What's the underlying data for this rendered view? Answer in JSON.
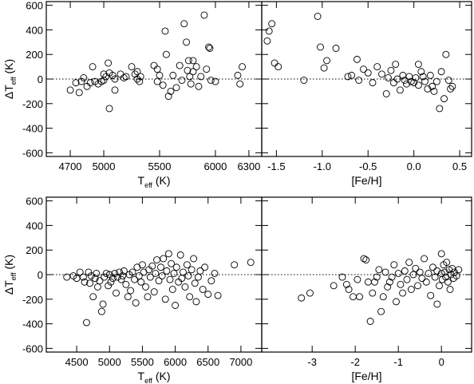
{
  "chart_data": [
    {
      "type": "scatter",
      "color": "#000000",
      "xlabel": {
        "text": "T",
        "sub": "eff",
        "unit": "(K)"
      },
      "ylabel": {
        "text": "ΔT",
        "sub": "eff",
        "unit": "(K)"
      },
      "xlim": [
        4485,
        6415
      ],
      "ylim": [
        -630,
        630
      ],
      "xticks": [
        4700,
        5000,
        5500,
        6000,
        6300
      ],
      "yticks": [
        -600,
        -400,
        -200,
        0,
        200,
        400,
        600
      ],
      "hline": 0,
      "x": [
        4700,
        4750,
        4780,
        4800,
        4820,
        4850,
        4880,
        4900,
        4920,
        4950,
        4980,
        5000,
        5000,
        5020,
        5040,
        5050,
        5050,
        5080,
        5100,
        5100,
        5150,
        5180,
        5200,
        5250,
        5280,
        5300,
        5300,
        5320,
        5330,
        5450,
        5480,
        5480,
        5500,
        5530,
        5550,
        5560,
        5580,
        5600,
        5620,
        5650,
        5680,
        5700,
        5720,
        5740,
        5750,
        5760,
        5770,
        5780,
        5800,
        5800,
        5830,
        5850,
        5870,
        5900,
        5920,
        5940,
        5950,
        5960,
        6000,
        6200,
        6220,
        6240
      ],
      "values": [
        -90,
        -30,
        -110,
        -20,
        10,
        -60,
        -30,
        100,
        -20,
        -40,
        -20,
        40,
        -10,
        20,
        130,
        -240,
        50,
        30,
        0,
        -90,
        40,
        10,
        20,
        100,
        40,
        60,
        0,
        -20,
        20,
        110,
        80,
        -20,
        30,
        -50,
        390,
        200,
        -140,
        -100,
        30,
        -70,
        110,
        -10,
        450,
        300,
        70,
        150,
        20,
        -40,
        150,
        60,
        100,
        -60,
        20,
        520,
        80,
        260,
        250,
        -10,
        -20,
        30,
        -40,
        100
      ]
    },
    {
      "type": "scatter",
      "color": "#000000",
      "xlabel": {
        "text": "[Fe/H]"
      },
      "xlim": [
        -1.66,
        0.63
      ],
      "ylim": [
        -630,
        630
      ],
      "xticks": [
        {
          "value": -1.5,
          "label": "-1.5"
        },
        {
          "value": -1.0,
          "label": "-1.0"
        },
        {
          "value": -0.5,
          "label": "-0.5"
        },
        {
          "value": 0.0,
          "label": "0.0"
        },
        {
          "value": 0.5,
          "label": "0.5"
        }
      ],
      "hline": 0,
      "x": [
        -1.6,
        -1.58,
        -1.55,
        -1.52,
        -1.48,
        -1.2,
        -1.05,
        -1.02,
        -0.98,
        -0.95,
        -0.85,
        -0.72,
        -0.68,
        -0.62,
        -0.6,
        -0.55,
        -0.5,
        -0.45,
        -0.4,
        -0.35,
        -0.3,
        -0.28,
        -0.25,
        -0.22,
        -0.2,
        -0.18,
        -0.15,
        -0.12,
        -0.1,
        -0.08,
        -0.05,
        -0.03,
        0.0,
        0.02,
        0.05,
        0.05,
        0.08,
        0.1,
        0.12,
        0.15,
        0.18,
        0.2,
        0.22,
        0.25,
        0.28,
        0.3,
        0.33,
        0.35,
        0.38,
        0.4,
        0.42
      ],
      "values": [
        310,
        390,
        450,
        130,
        100,
        -10,
        510,
        260,
        90,
        150,
        250,
        20,
        30,
        160,
        -10,
        80,
        50,
        -30,
        100,
        40,
        -120,
        10,
        70,
        -30,
        120,
        0,
        -90,
        30,
        -10,
        -40,
        20,
        -20,
        -30,
        10,
        120,
        -50,
        60,
        20,
        -20,
        -80,
        30,
        -60,
        -100,
        -20,
        -240,
        60,
        -160,
        200,
        -10,
        -80,
        -60
      ]
    },
    {
      "type": "scatter",
      "color": "#000000",
      "xlabel": {
        "text": "T",
        "sub": "eff",
        "unit": "(K)"
      },
      "ylabel": {
        "text": "ΔT",
        "sub": "eff",
        "unit": "(K)"
      },
      "xlim": [
        4037,
        7317
      ],
      "ylim": [
        -630,
        630
      ],
      "xticks": [
        4500,
        5000,
        5500,
        6000,
        6500,
        7000
      ],
      "yticks": [
        -600,
        -400,
        -200,
        0,
        200,
        400,
        600
      ],
      "hline": 0,
      "x": [
        4350,
        4450,
        4500,
        4550,
        4600,
        4620,
        4650,
        4680,
        4700,
        4720,
        4750,
        4780,
        4800,
        4820,
        4850,
        4880,
        4900,
        4920,
        4950,
        4980,
        5000,
        5020,
        5050,
        5080,
        5100,
        5120,
        5150,
        5180,
        5200,
        5220,
        5250,
        5280,
        5300,
        5320,
        5350,
        5380,
        5400,
        5420,
        5450,
        5480,
        5500,
        5520,
        5550,
        5580,
        5600,
        5620,
        5650,
        5680,
        5700,
        5720,
        5750,
        5780,
        5800,
        5820,
        5850,
        5870,
        5900,
        5920,
        5940,
        5960,
        5980,
        6000,
        6020,
        6050,
        6080,
        6100,
        6120,
        6150,
        6180,
        6200,
        6220,
        6250,
        6280,
        6300,
        6320,
        6350,
        6380,
        6420,
        6450,
        6500,
        6550,
        6600,
        6650,
        6900,
        7150
      ],
      "values": [
        -20,
        -10,
        -30,
        20,
        -20,
        -60,
        -390,
        20,
        -70,
        -10,
        -180,
        -30,
        10,
        -100,
        -50,
        -300,
        -240,
        -20,
        10,
        -90,
        0,
        -60,
        -30,
        10,
        -150,
        -20,
        20,
        -40,
        -10,
        30,
        -80,
        -180,
        0,
        -130,
        20,
        -40,
        -230,
        60,
        -10,
        -60,
        80,
        20,
        -100,
        -180,
        40,
        -20,
        70,
        -140,
        10,
        120,
        -50,
        60,
        -10,
        130,
        -200,
        30,
        170,
        -40,
        90,
        -120,
        10,
        -250,
        60,
        -60,
        160,
        -30,
        20,
        -100,
        80,
        -10,
        -180,
        40,
        130,
        -70,
        -220,
        -20,
        30,
        -120,
        60,
        -160,
        -50,
        10,
        -170,
        80,
        100
      ]
    },
    {
      "type": "scatter",
      "color": "#000000",
      "xlabel": {
        "text": "[Fe/H]"
      },
      "xlim": [
        -4.17,
        0.7
      ],
      "ylim": [
        -630,
        630
      ],
      "xticks": [
        -3,
        -2,
        -1,
        0
      ],
      "hline": 0,
      "x": [
        -3.25,
        -3.05,
        -2.5,
        -2.3,
        -2.2,
        -2.15,
        -2.05,
        -1.95,
        -1.9,
        -1.8,
        -1.75,
        -1.7,
        -1.65,
        -1.6,
        -1.55,
        -1.5,
        -1.45,
        -1.4,
        -1.35,
        -1.3,
        -1.25,
        -1.2,
        -1.15,
        -1.1,
        -1.05,
        -1.0,
        -0.95,
        -0.9,
        -0.85,
        -0.8,
        -0.75,
        -0.7,
        -0.65,
        -0.6,
        -0.55,
        -0.5,
        -0.45,
        -0.4,
        -0.35,
        -0.3,
        -0.25,
        -0.2,
        -0.15,
        -0.1,
        -0.05,
        0.0,
        0.02,
        0.05,
        0.08,
        0.1,
        0.12,
        0.15,
        0.18,
        0.2,
        0.22,
        0.25,
        0.28,
        0.3,
        0.35,
        0.4,
        -0.1,
        0.0
      ],
      "values": [
        -190,
        -150,
        -90,
        -20,
        -80,
        -120,
        -180,
        -40,
        -180,
        130,
        120,
        -60,
        -380,
        -150,
        -60,
        -20,
        40,
        -300,
        -180,
        20,
        -100,
        -60,
        -20,
        80,
        -220,
        10,
        -80,
        -150,
        30,
        -40,
        100,
        -120,
        0,
        50,
        -90,
        20,
        -30,
        130,
        -60,
        10,
        -170,
        60,
        -20,
        30,
        -90,
        10,
        -40,
        80,
        20,
        -20,
        100,
        -60,
        40,
        -120,
        0,
        50,
        -30,
        20,
        -10,
        40,
        -240,
        170
      ]
    }
  ]
}
